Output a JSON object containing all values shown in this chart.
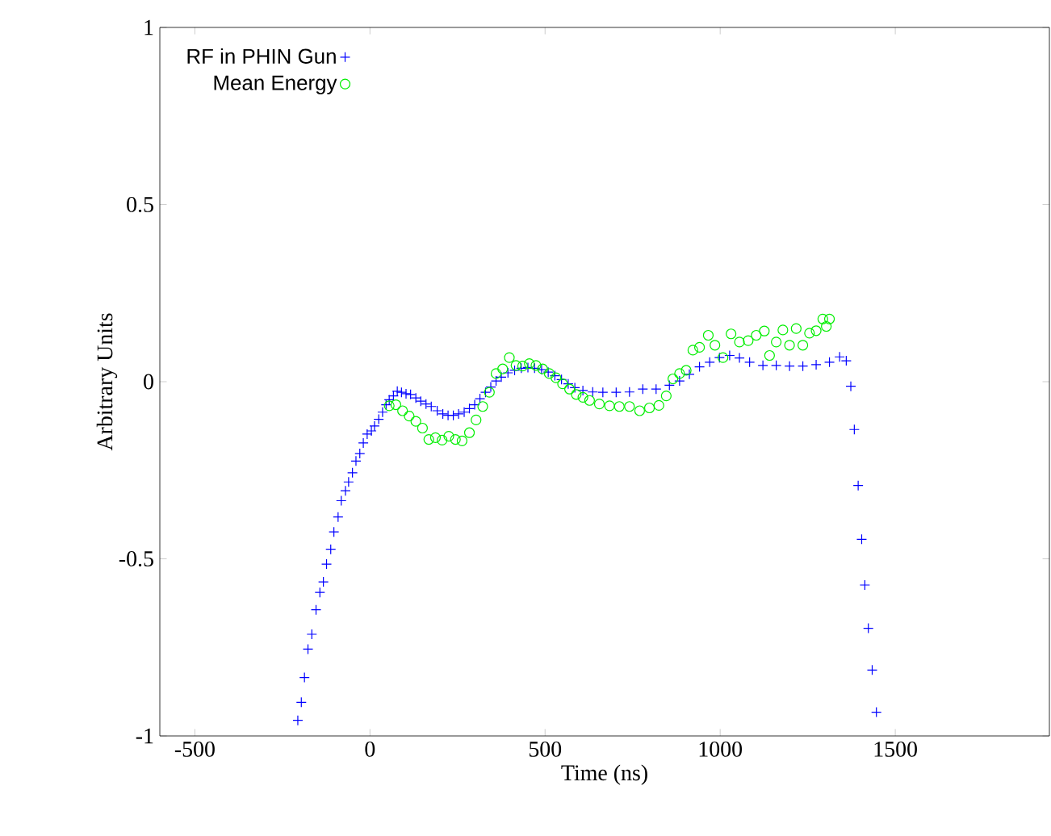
{
  "chart_data": {
    "type": "scatter",
    "xlabel": "Time (ns)",
    "ylabel": "Arbitrary Units",
    "xlim": [
      -600,
      1940
    ],
    "ylim": [
      -1,
      1
    ],
    "xticks": [
      -500,
      0,
      500,
      1000,
      1500
    ],
    "yticks": [
      -1,
      -0.5,
      0,
      0.5,
      1
    ],
    "legend": "top left",
    "grid": false,
    "series": [
      {
        "name": "RF in PHIN Gun",
        "color": "#0000ff",
        "marker": "cross",
        "x": [
          -206,
          -196,
          -187,
          -177,
          -166,
          -154,
          -143,
          -133,
          -124,
          -112,
          -103,
          -91,
          -82,
          -70,
          -61,
          -50,
          -40,
          -29,
          -19,
          -8,
          4,
          13,
          25,
          36,
          46,
          55,
          67,
          78,
          90,
          103,
          116,
          131,
          145,
          160,
          175,
          192,
          208,
          223,
          238,
          253,
          269,
          284,
          299,
          314,
          330,
          345,
          360,
          375,
          394,
          413,
          432,
          451,
          470,
          490,
          509,
          528,
          547,
          566,
          585,
          608,
          636,
          665,
          703,
          741,
          779,
          817,
          855,
          884,
          912,
          941,
          970,
          998,
          1027,
          1055,
          1084,
          1122,
          1160,
          1198,
          1236,
          1274,
          1312,
          1341,
          1360,
          1373,
          1383,
          1394,
          1404,
          1413,
          1423,
          1434,
          1446
        ],
        "values": [
          -0.956,
          -0.905,
          -0.835,
          -0.755,
          -0.713,
          -0.644,
          -0.595,
          -0.565,
          -0.515,
          -0.473,
          -0.424,
          -0.382,
          -0.336,
          -0.308,
          -0.283,
          -0.257,
          -0.224,
          -0.203,
          -0.173,
          -0.148,
          -0.139,
          -0.125,
          -0.106,
          -0.086,
          -0.065,
          -0.051,
          -0.04,
          -0.027,
          -0.03,
          -0.034,
          -0.036,
          -0.046,
          -0.055,
          -0.063,
          -0.07,
          -0.082,
          -0.091,
          -0.095,
          -0.095,
          -0.091,
          -0.086,
          -0.076,
          -0.065,
          -0.048,
          -0.03,
          -0.015,
          0.002,
          0.013,
          0.025,
          0.032,
          0.038,
          0.04,
          0.038,
          0.034,
          0.027,
          0.017,
          0.006,
          -0.006,
          -0.017,
          -0.025,
          -0.029,
          -0.03,
          -0.03,
          -0.029,
          -0.021,
          -0.021,
          -0.01,
          0.002,
          0.021,
          0.042,
          0.055,
          0.068,
          0.074,
          0.067,
          0.055,
          0.046,
          0.046,
          0.044,
          0.044,
          0.048,
          0.055,
          0.07,
          0.059,
          -0.013,
          -0.135,
          -0.293,
          -0.445,
          -0.574,
          -0.696,
          -0.814,
          -0.933
        ]
      },
      {
        "name": "Mean Energy",
        "color": "#00ee00",
        "marker": "circle",
        "x": [
          55,
          74,
          93,
          112,
          131,
          150,
          168,
          187,
          206,
          225,
          244,
          263,
          284,
          303,
          322,
          341,
          360,
          379,
          398,
          417,
          436,
          455,
          474,
          493,
          512,
          531,
          550,
          570,
          589,
          608,
          627,
          655,
          684,
          712,
          741,
          770,
          798,
          825,
          846,
          865,
          884,
          903,
          922,
          941,
          966,
          985,
          1008,
          1031,
          1055,
          1080,
          1103,
          1126,
          1141,
          1160,
          1179,
          1198,
          1217,
          1236,
          1255,
          1274,
          1293,
          1303,
          1312
        ],
        "values": [
          -0.068,
          -0.065,
          -0.082,
          -0.097,
          -0.112,
          -0.131,
          -0.163,
          -0.158,
          -0.165,
          -0.154,
          -0.163,
          -0.167,
          -0.144,
          -0.108,
          -0.07,
          -0.03,
          0.023,
          0.036,
          0.068,
          0.046,
          0.044,
          0.051,
          0.046,
          0.036,
          0.023,
          0.011,
          -0.006,
          -0.021,
          -0.036,
          -0.044,
          -0.053,
          -0.063,
          -0.068,
          -0.07,
          -0.07,
          -0.082,
          -0.074,
          -0.067,
          -0.04,
          0.008,
          0.023,
          0.032,
          0.089,
          0.097,
          0.131,
          0.103,
          0.068,
          0.135,
          0.112,
          0.116,
          0.131,
          0.143,
          0.074,
          0.112,
          0.146,
          0.103,
          0.15,
          0.103,
          0.137,
          0.144,
          0.177,
          0.156,
          0.177
        ]
      }
    ]
  }
}
